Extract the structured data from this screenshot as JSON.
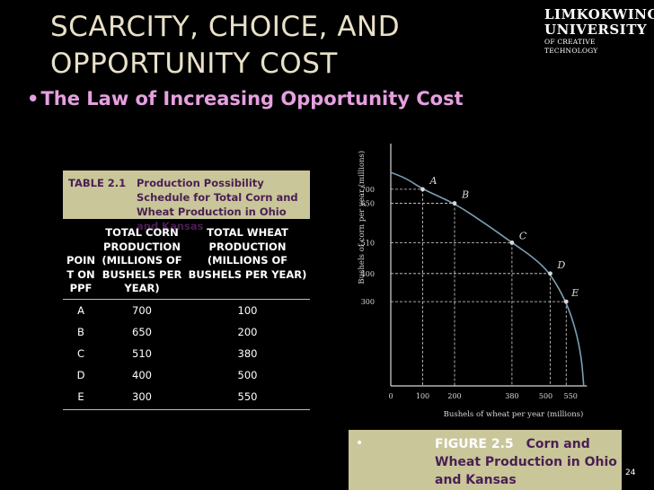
{
  "title": {
    "line1": "SCARCITY, CHOICE, AND",
    "line2": "OPPORTUNITY COST"
  },
  "logo": {
    "line1": "LIMKOKWING",
    "line2": "UNIVERSITY",
    "line3": "OF CREATIVE TECHNOLOGY"
  },
  "bullet": {
    "dot": "•",
    "text": "The Law of Increasing Opportunity Cost"
  },
  "table": {
    "label": "TABLE 2.1",
    "title": "Production Possibility Schedule for Total Corn and Wheat Production in Ohio and Kansas",
    "headers": [
      "POIN T ON PPF",
      "TOTAL CORN PRODUCTION (MILLIONS OF BUSHELS PER YEAR)",
      "TOTAL WHEAT PRODUCTION (MILLIONS OF BUSHELS PER YEAR)"
    ],
    "rows": [
      {
        "point": "A",
        "corn": "700",
        "wheat": "100"
      },
      {
        "point": "B",
        "corn": "650",
        "wheat": "200"
      },
      {
        "point": "C",
        "corn": "510",
        "wheat": "380"
      },
      {
        "point": "D",
        "corn": "400",
        "wheat": "500"
      },
      {
        "point": "E",
        "corn": "300",
        "wheat": "550"
      }
    ]
  },
  "chart_data": {
    "type": "line",
    "xlabel": "Bushels of wheat per year (millions)",
    "ylabel": "Bushels of corn per year (millions)",
    "x_ticks": [
      "0",
      "100",
      "200",
      "380",
      "500",
      "550"
    ],
    "y_ticks": [
      "700",
      "650",
      "510",
      "400",
      "300"
    ],
    "points": [
      {
        "label": "A",
        "x": 100,
        "y": 700
      },
      {
        "label": "B",
        "x": 200,
        "y": 650
      },
      {
        "label": "C",
        "x": 380,
        "y": 510
      },
      {
        "label": "D",
        "x": 500,
        "y": 400
      },
      {
        "label": "E",
        "x": 550,
        "y": 300
      }
    ],
    "grid": false
  },
  "caption": {
    "bullet": "•",
    "figure": "FIGURE 2.5",
    "text": "Corn and Wheat Production in Ohio and Kansas"
  },
  "page_number": "24",
  "colors": {
    "accent_pink": "#e6a0e0",
    "title_text": "#e8e0c8",
    "table_header_bg": "#c9c69a",
    "table_title_text": "#4a1f52",
    "curve": "#7aa0b4"
  }
}
